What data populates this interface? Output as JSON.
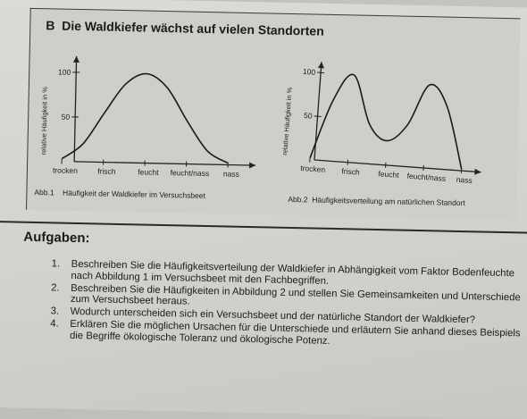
{
  "figure": {
    "label": "B",
    "title": "Die Waldkiefer wächst auf vielen Standorten"
  },
  "chart_data": [
    {
      "type": "line",
      "ylabel": "relative Häufigkeit in %",
      "categories": [
        "trocken",
        "frisch",
        "feucht",
        "feucht/nass",
        "nass"
      ],
      "yticks": [
        50,
        100
      ],
      "series": [
        {
          "x": [
            0,
            0.5,
            1,
            1.5,
            2,
            2.5,
            3,
            3.5,
            4
          ],
          "y": [
            3,
            20,
            55,
            88,
            100,
            85,
            48,
            15,
            2
          ]
        }
      ],
      "caption_num": "Abb.1",
      "caption": "Häufigkeit der Waldkiefer im Versuchsbeet"
    },
    {
      "type": "line",
      "ylabel": "relative Häufigkeit in %",
      "categories": [
        "trocken",
        "frisch",
        "feucht",
        "feucht/nass",
        "nass"
      ],
      "yticks": [
        50,
        100
      ],
      "series": [
        {
          "x": [
            0,
            0.5,
            1,
            1.5,
            2,
            2.5,
            3,
            3.5,
            4
          ],
          "y": [
            2,
            70,
            100,
            45,
            28,
            48,
            95,
            72,
            2
          ]
        }
      ],
      "caption_num": "Abb.2",
      "caption": "Häufigkeitsverteilung am natürlichen Standort"
    }
  ],
  "tasks_heading": "Aufgaben:",
  "tasks": [
    {
      "num": "1.",
      "text": "Beschreiben Sie die Häufigkeitsverteilung der Waldkiefer in Abhängigkeit vom Faktor Bodenfeuchte nach Abbildung 1 im Versuchsbeet mit den Fachbegriffen."
    },
    {
      "num": "2.",
      "text": "Beschreiben Sie die Häufigkeiten in Abbildung 2 und stellen Sie Gemeinsamkeiten und Unterschiede zum Versuchsbeet heraus."
    },
    {
      "num": "3.",
      "text": "Wodurch unterscheiden sich ein Versuchsbeet und der natürliche Standort der Waldkiefer?"
    },
    {
      "num": "4.",
      "text": "Erklären Sie die möglichen Ursachen für die Unterschiede und erläutern Sie anhand dieses Beispiels die Begriffe ökologische Toleranz und ökologische Potenz."
    }
  ]
}
